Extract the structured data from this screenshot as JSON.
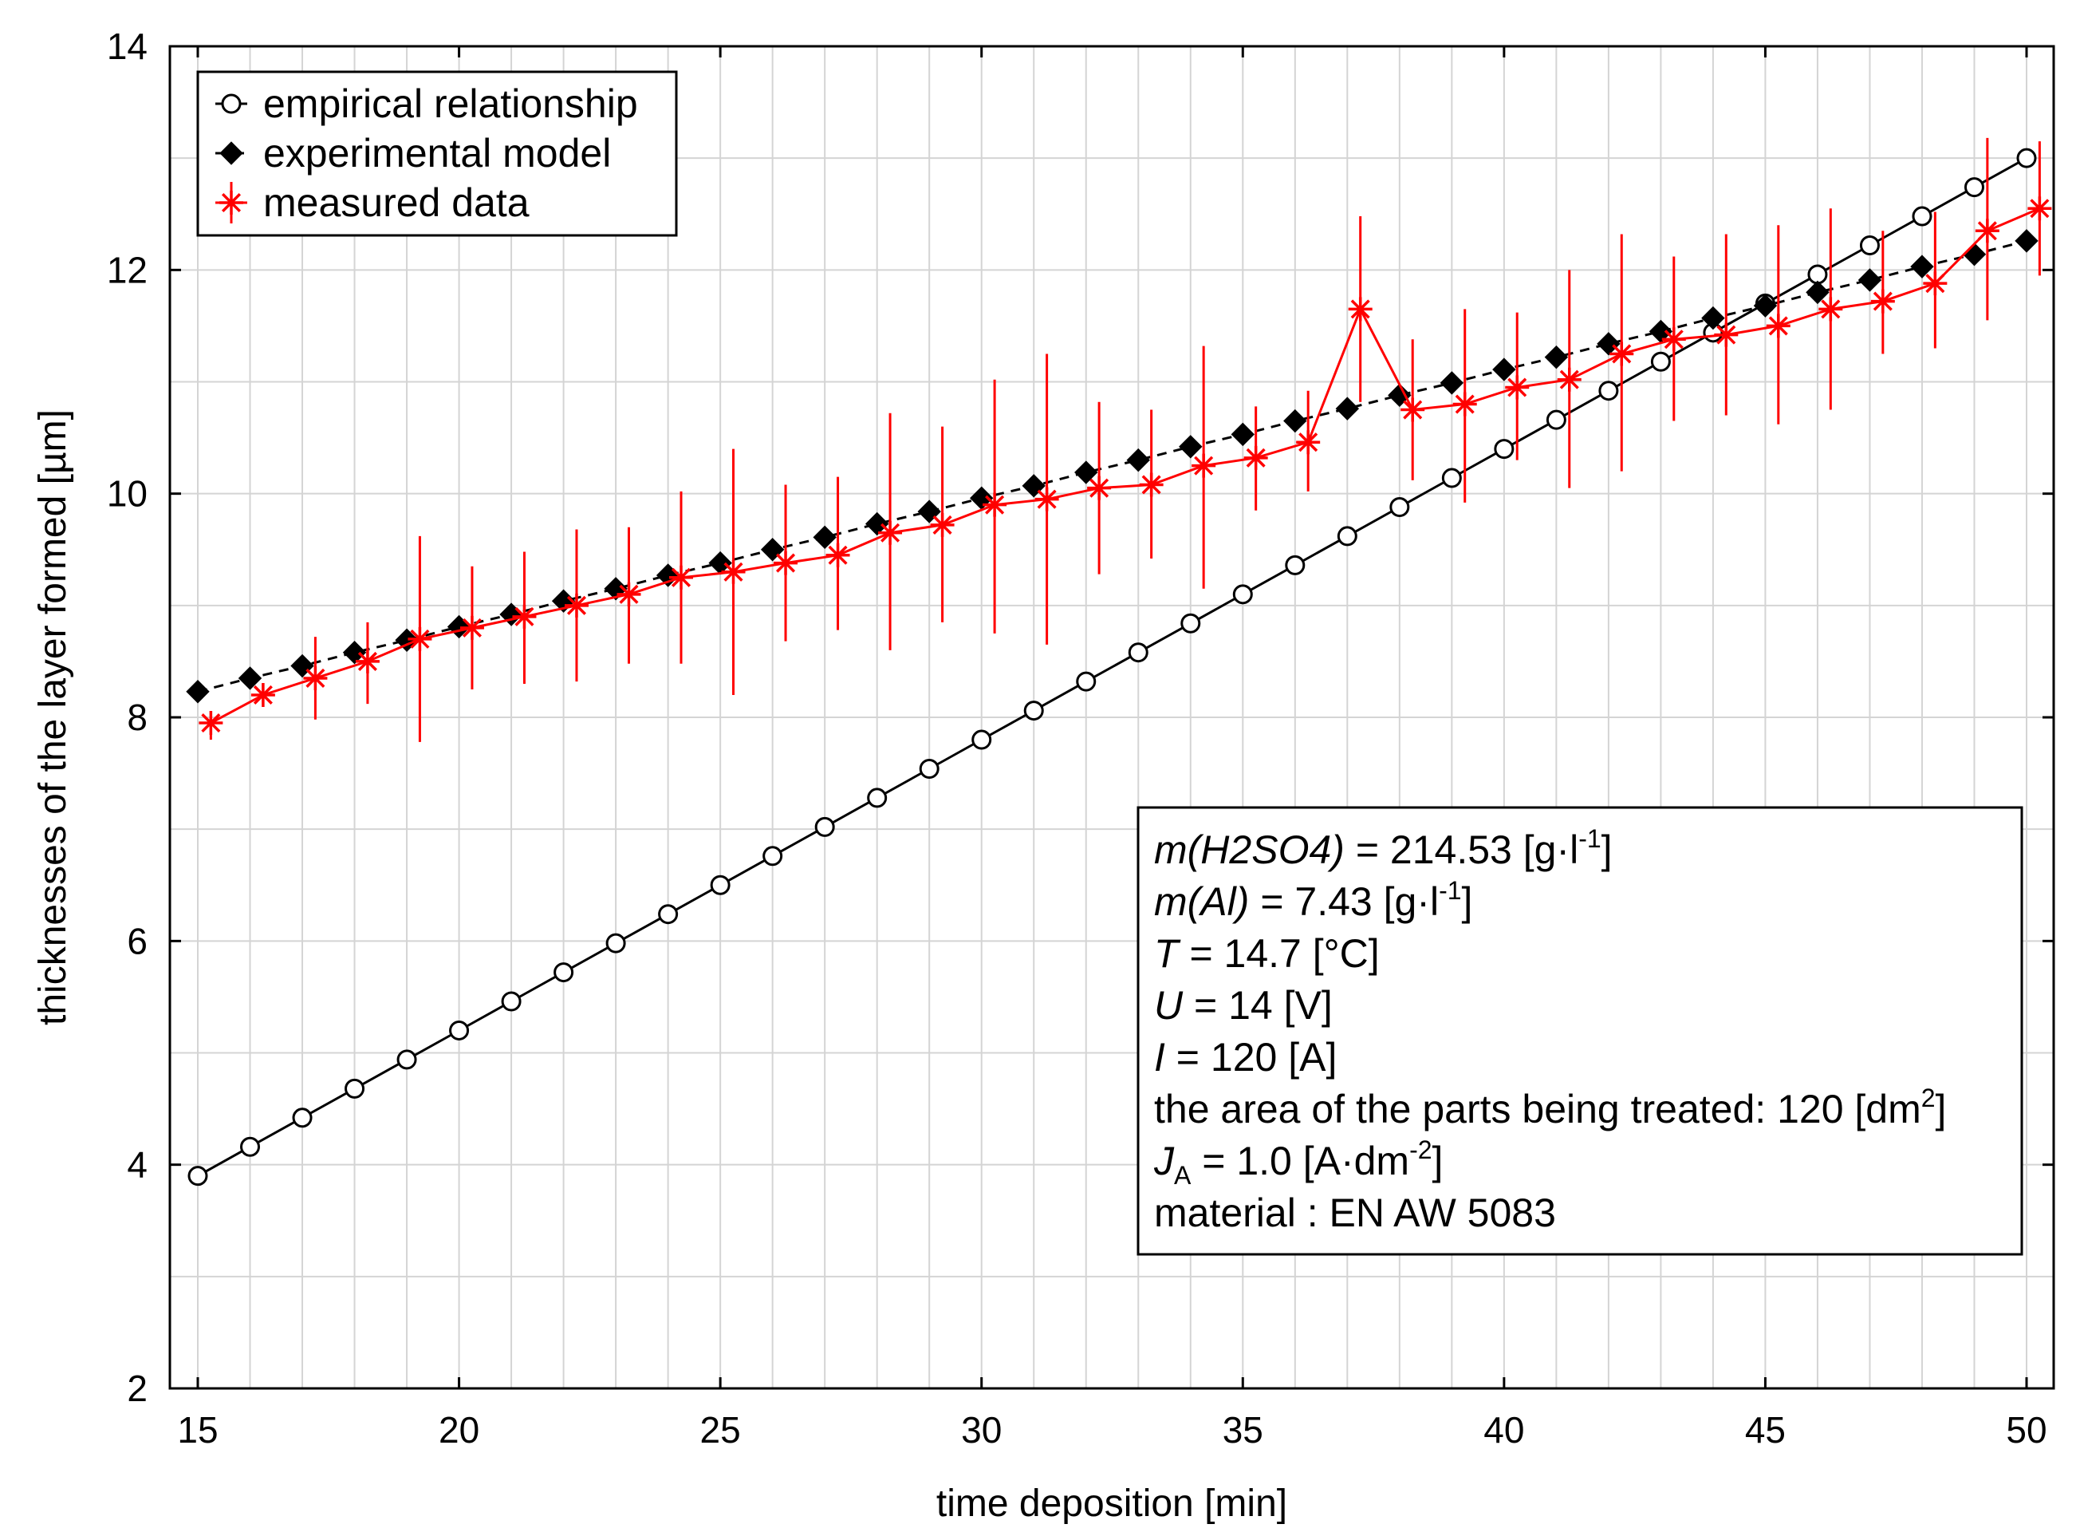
{
  "chart_data": {
    "type": "line",
    "title": "",
    "xlabel": "time deposition [min]",
    "ylabel": "thicknesses of the layer formed [µm]",
    "xlim": [
      15,
      50
    ],
    "ylim": [
      2,
      14
    ],
    "xticks": [
      15,
      20,
      25,
      30,
      35,
      40,
      45,
      50
    ],
    "yticks": [
      2,
      4,
      6,
      8,
      10,
      12,
      14
    ],
    "grid": true,
    "legend_position": "top-left",
    "series": [
      {
        "name": "empirical relationship",
        "marker": "open-circle",
        "color": "#000000",
        "line": "solid",
        "x": [
          15,
          16,
          17,
          18,
          19,
          20,
          21,
          22,
          23,
          24,
          25,
          26,
          27,
          28,
          29,
          30,
          31,
          32,
          33,
          34,
          35,
          36,
          37,
          38,
          39,
          40,
          41,
          42,
          43,
          44,
          45,
          46,
          47,
          48,
          49,
          50
        ],
        "y": [
          3.9,
          4.16,
          4.42,
          4.68,
          4.94,
          5.2,
          5.46,
          5.72,
          5.98,
          6.24,
          6.5,
          6.76,
          7.02,
          7.28,
          7.54,
          7.8,
          8.06,
          8.32,
          8.58,
          8.84,
          9.1,
          9.36,
          9.62,
          9.88,
          10.14,
          10.4,
          10.66,
          10.92,
          11.18,
          11.44,
          11.7,
          11.96,
          12.22,
          12.48,
          12.74,
          13.0
        ]
      },
      {
        "name": "experimental model",
        "marker": "filled-diamond",
        "color": "#000000",
        "line": "dashed",
        "x": [
          15,
          16,
          17,
          18,
          19,
          20,
          21,
          22,
          23,
          24,
          25,
          26,
          27,
          28,
          29,
          30,
          31,
          32,
          33,
          34,
          35,
          36,
          37,
          38,
          39,
          40,
          41,
          42,
          43,
          44,
          45,
          46,
          47,
          48,
          49,
          50
        ],
        "y": [
          8.23,
          8.35,
          8.46,
          8.58,
          8.69,
          8.81,
          8.92,
          9.04,
          9.15,
          9.27,
          9.38,
          9.5,
          9.61,
          9.73,
          9.84,
          9.96,
          10.07,
          10.19,
          10.3,
          10.42,
          10.53,
          10.65,
          10.76,
          10.88,
          10.99,
          11.11,
          11.22,
          11.34,
          11.45,
          11.57,
          11.68,
          11.8,
          11.91,
          12.03,
          12.14,
          12.26
        ]
      },
      {
        "name": "measured data",
        "marker": "asterisk",
        "color": "#ff0000",
        "line": "solid",
        "x": [
          15.25,
          16.25,
          17.25,
          18.25,
          19.25,
          20.25,
          21.25,
          22.25,
          23.25,
          24.25,
          25.25,
          26.25,
          27.25,
          28.25,
          29.25,
          30.25,
          31.25,
          32.25,
          33.25,
          34.25,
          35.25,
          36.25,
          37.25,
          38.25,
          39.25,
          40.25,
          41.25,
          42.25,
          43.25,
          44.25,
          45.25,
          46.25,
          47.25,
          48.25,
          49.25,
          50.25
        ],
        "y": [
          7.95,
          8.2,
          8.35,
          8.5,
          8.7,
          8.8,
          8.9,
          9.0,
          9.1,
          9.25,
          9.3,
          9.38,
          9.45,
          9.65,
          9.72,
          9.9,
          9.95,
          10.05,
          10.08,
          10.25,
          10.32,
          10.46,
          11.65,
          10.75,
          10.8,
          10.95,
          11.02,
          11.25,
          11.38,
          11.42,
          11.5,
          11.65,
          11.72,
          11.88,
          12.35,
          12.55
        ],
        "err_low": [
          7.8,
          8.12,
          7.98,
          8.12,
          7.78,
          8.25,
          8.3,
          8.32,
          8.48,
          8.48,
          8.2,
          8.68,
          8.78,
          8.6,
          8.85,
          8.75,
          8.65,
          9.28,
          9.42,
          9.15,
          9.85,
          10.02,
          10.82,
          10.12,
          9.92,
          10.3,
          10.05,
          10.2,
          10.65,
          10.7,
          10.62,
          10.75,
          11.25,
          11.3,
          11.55,
          11.95
        ],
        "err_high": [
          8.0,
          8.3,
          8.72,
          8.85,
          9.62,
          9.35,
          9.48,
          9.68,
          9.7,
          10.02,
          10.4,
          10.08,
          10.15,
          10.72,
          10.6,
          11.02,
          11.25,
          10.82,
          10.75,
          11.32,
          10.78,
          10.92,
          12.48,
          11.38,
          11.65,
          11.62,
          12.0,
          12.32,
          12.12,
          12.32,
          12.4,
          12.55,
          12.35,
          12.52,
          13.18,
          13.15
        ]
      }
    ],
    "annotation_box": {
      "lines": [
        {
          "italic": "m(H2SO4)",
          "text": " = 214.53 [g·l",
          "sup": "-1",
          "tail": "]"
        },
        {
          "italic": "m(Al)",
          "text": " = 7.43 [g·l",
          "sup": "-1",
          "tail": "]"
        },
        {
          "italic": "T",
          "text": " = 14.7 [°C]",
          "sup": "",
          "tail": ""
        },
        {
          "italic": "U",
          "text": " = 14 [V]",
          "sup": "",
          "tail": ""
        },
        {
          "italic": "I",
          "text": " = 120 [A]",
          "sup": "",
          "tail": ""
        },
        {
          "italic": "",
          "text": "the area of the parts being treated: 120 [dm",
          "sup": "2",
          "tail": "]"
        },
        {
          "italic": "J",
          "sub": "A",
          "text": " = 1.0 [A·dm",
          "sup": "-2",
          "tail": "]"
        },
        {
          "italic": "",
          "text": "material : EN AW 5083",
          "sup": "",
          "tail": ""
        }
      ]
    }
  }
}
